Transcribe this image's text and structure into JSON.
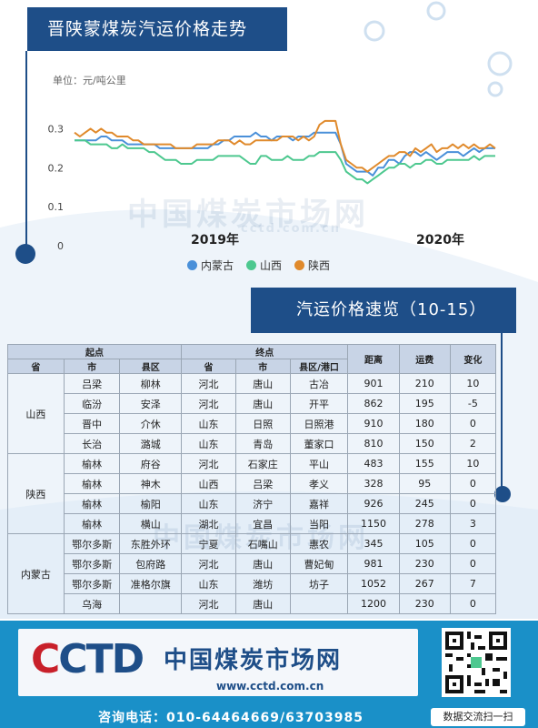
{
  "header": {
    "title": "晋陕蒙煤炭汽运价格走势"
  },
  "chart_unit": "单位：元/吨公里",
  "chart_data": {
    "type": "line",
    "ylabel": "",
    "ylim": [
      0,
      0.35
    ],
    "yticks": [
      0,
      0.1,
      0.2,
      0.3
    ],
    "year_labels": [
      "2019年",
      "2020年"
    ],
    "legend_position": "bottom",
    "series": [
      {
        "name": "内蒙古",
        "color": "#4a90d9",
        "values": [
          0.27,
          0.27,
          0.27,
          0.27,
          0.27,
          0.28,
          0.28,
          0.27,
          0.27,
          0.27,
          0.26,
          0.26,
          0.26,
          0.26,
          0.26,
          0.26,
          0.25,
          0.25,
          0.25,
          0.25,
          0.25,
          0.25,
          0.25,
          0.25,
          0.25,
          0.25,
          0.26,
          0.26,
          0.27,
          0.27,
          0.28,
          0.28,
          0.28,
          0.28,
          0.29,
          0.28,
          0.28,
          0.27,
          0.28,
          0.28,
          0.28,
          0.27,
          0.28,
          0.28,
          0.28,
          0.29,
          0.29,
          0.29,
          0.29,
          0.29,
          0.26,
          0.21,
          0.2,
          0.19,
          0.19,
          0.19,
          0.18,
          0.2,
          0.2,
          0.22,
          0.22,
          0.21,
          0.23,
          0.24,
          0.24,
          0.23,
          0.24,
          0.23,
          0.22,
          0.23,
          0.24,
          0.24,
          0.24,
          0.23,
          0.24,
          0.25,
          0.24,
          0.25,
          0.25,
          0.25
        ]
      },
      {
        "name": "山西",
        "color": "#4dc88f",
        "values": [
          0.27,
          0.27,
          0.27,
          0.26,
          0.26,
          0.26,
          0.26,
          0.25,
          0.25,
          0.26,
          0.25,
          0.25,
          0.25,
          0.25,
          0.24,
          0.24,
          0.23,
          0.22,
          0.22,
          0.22,
          0.21,
          0.21,
          0.21,
          0.22,
          0.22,
          0.22,
          0.22,
          0.23,
          0.23,
          0.23,
          0.23,
          0.23,
          0.22,
          0.21,
          0.21,
          0.23,
          0.23,
          0.22,
          0.22,
          0.22,
          0.23,
          0.22,
          0.22,
          0.22,
          0.23,
          0.23,
          0.24,
          0.24,
          0.24,
          0.24,
          0.22,
          0.19,
          0.18,
          0.17,
          0.17,
          0.16,
          0.17,
          0.18,
          0.19,
          0.2,
          0.2,
          0.21,
          0.21,
          0.2,
          0.21,
          0.21,
          0.22,
          0.22,
          0.21,
          0.21,
          0.22,
          0.22,
          0.22,
          0.22,
          0.22,
          0.23,
          0.22,
          0.23,
          0.23,
          0.23
        ]
      },
      {
        "name": "陕西",
        "color": "#e08a2c",
        "values": [
          0.29,
          0.28,
          0.29,
          0.3,
          0.29,
          0.3,
          0.29,
          0.29,
          0.28,
          0.28,
          0.28,
          0.27,
          0.27,
          0.26,
          0.26,
          0.26,
          0.26,
          0.26,
          0.26,
          0.25,
          0.25,
          0.25,
          0.25,
          0.26,
          0.26,
          0.26,
          0.26,
          0.27,
          0.27,
          0.27,
          0.26,
          0.27,
          0.26,
          0.26,
          0.27,
          0.27,
          0.27,
          0.27,
          0.27,
          0.28,
          0.28,
          0.28,
          0.27,
          0.28,
          0.27,
          0.28,
          0.31,
          0.32,
          0.32,
          0.32,
          0.26,
          0.22,
          0.21,
          0.2,
          0.2,
          0.19,
          0.2,
          0.21,
          0.22,
          0.23,
          0.23,
          0.24,
          0.24,
          0.23,
          0.25,
          0.24,
          0.25,
          0.26,
          0.24,
          0.25,
          0.25,
          0.26,
          0.25,
          0.26,
          0.25,
          0.26,
          0.25,
          0.25,
          0.26,
          0.25
        ]
      }
    ]
  },
  "section2": {
    "title": "汽运价格速览（10-15）"
  },
  "table": {
    "group_headers": {
      "origin": "起点",
      "destination": "终点",
      "distance": "距离",
      "fee": "运费",
      "change": "变化"
    },
    "sub_headers": [
      "省",
      "市",
      "县区",
      "省",
      "市",
      "县区/港口"
    ],
    "groups": [
      {
        "province": "山西",
        "rows": [
          [
            "吕梁",
            "柳林",
            "河北",
            "唐山",
            "古冶",
            "901",
            "210",
            "10"
          ],
          [
            "临汾",
            "安泽",
            "河北",
            "唐山",
            "开平",
            "862",
            "195",
            "-5"
          ],
          [
            "晋中",
            "介休",
            "山东",
            "日照",
            "日照港",
            "910",
            "180",
            "0"
          ],
          [
            "长治",
            "潞城",
            "山东",
            "青岛",
            "董家口",
            "810",
            "150",
            "2"
          ]
        ]
      },
      {
        "province": "陕西",
        "rows": [
          [
            "榆林",
            "府谷",
            "河北",
            "石家庄",
            "平山",
            "483",
            "155",
            "10"
          ],
          [
            "榆林",
            "神木",
            "山西",
            "吕梁",
            "孝义",
            "328",
            "95",
            "0"
          ],
          [
            "榆林",
            "榆阳",
            "山东",
            "济宁",
            "嘉祥",
            "926",
            "245",
            "0"
          ],
          [
            "榆林",
            "横山",
            "湖北",
            "宜昌",
            "当阳",
            "1150",
            "278",
            "3"
          ]
        ]
      },
      {
        "province": "内蒙古",
        "rows": [
          [
            "鄂尔多斯",
            "东胜外环",
            "宁夏",
            "石嘴山",
            "惠农",
            "345",
            "105",
            "0"
          ],
          [
            "鄂尔多斯",
            "包府路",
            "河北",
            "唐山",
            "曹妃甸",
            "981",
            "230",
            "0"
          ],
          [
            "鄂尔多斯",
            "准格尔旗",
            "山东",
            "潍坊",
            "坊子",
            "1052",
            "267",
            "7"
          ],
          [
            "乌海",
            "",
            "河北",
            "唐山",
            "",
            "1200",
            "230",
            "0"
          ]
        ]
      }
    ]
  },
  "footer": {
    "logo_text": "CCTD",
    "org_name": "中国煤炭市场网",
    "url": "www.cctd.com.cn",
    "phone": "咨询电话：010-64464669/63703985",
    "qr_label": "数据交流扫一扫"
  },
  "watermark": {
    "text": "中国煤炭市场网",
    "url": "cctd.com.cn"
  },
  "colors": {
    "brand": "#1e4e88",
    "footer": "#1a90c8"
  }
}
